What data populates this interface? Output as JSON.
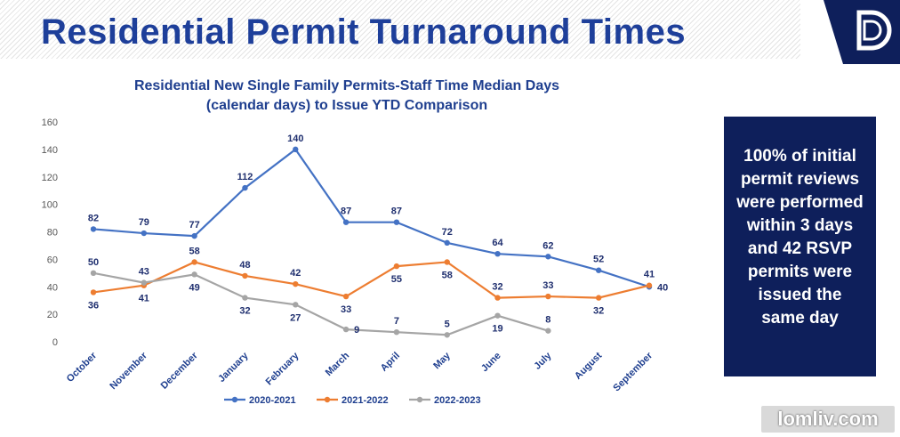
{
  "slide_title": "Residential Permit Turnaround Times",
  "chart_data": {
    "type": "line",
    "title": "Residential New Single Family Permits-Staff Time Median Days",
    "subtitle": "(calendar days) to Issue YTD Comparison",
    "categories": [
      "October",
      "November",
      "December",
      "January",
      "February",
      "March",
      "April",
      "May",
      "June",
      "July",
      "August",
      "September"
    ],
    "series": [
      {
        "name": "2020-2021",
        "color": "#4472c4",
        "values": [
          82,
          79,
          77,
          112,
          140,
          87,
          87,
          72,
          64,
          62,
          52,
          40
        ]
      },
      {
        "name": "2021-2022",
        "color": "#ed7d31",
        "values": [
          36,
          41,
          58,
          48,
          42,
          33,
          55,
          58,
          32,
          33,
          32,
          41
        ]
      },
      {
        "name": "2022-2023",
        "color": "#a5a5a5",
        "values": [
          50,
          43,
          49,
          32,
          27,
          9,
          7,
          5,
          19,
          8,
          null,
          null
        ]
      }
    ],
    "ylim": [
      0,
      160
    ],
    "yticks": [
      0,
      20,
      40,
      60,
      80,
      100,
      120,
      140,
      160
    ],
    "grid": false,
    "legend": "bottom"
  },
  "callout": "100% of initial permit reviews were performed within 3 days and 42 RSVP permits were issued the same day",
  "watermark": "lomliv.com"
}
